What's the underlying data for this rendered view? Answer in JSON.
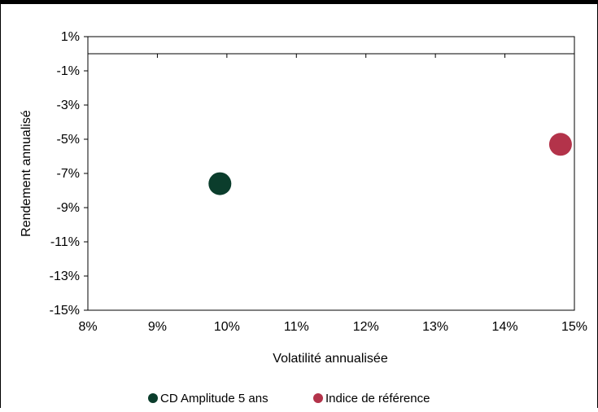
{
  "chart_data": {
    "type": "scatter",
    "xlabel": "Volatilité annualisée",
    "ylabel": "Rendement annualisé",
    "xlim": [
      0.08,
      0.15
    ],
    "ylim": [
      -0.15,
      0.01
    ],
    "x_ticks": [
      "8%",
      "9%",
      "10%",
      "11%",
      "12%",
      "13%",
      "14%",
      "15%"
    ],
    "y_ticks": [
      "1%",
      "-1%",
      "-3%",
      "-5%",
      "-7%",
      "-9%",
      "-11%",
      "-13%",
      "-15%"
    ],
    "x_tick_values": [
      0.08,
      0.09,
      0.1,
      0.11,
      0.12,
      0.13,
      0.14,
      0.15
    ],
    "y_tick_values": [
      0.01,
      -0.01,
      -0.03,
      -0.05,
      -0.07,
      -0.09,
      -0.11,
      -0.13,
      -0.15
    ],
    "grid": false,
    "legend_position": "bottom",
    "series": [
      {
        "name": "CD Amplitude 5 ans",
        "color": "#0b3d2c",
        "x": [
          0.099
        ],
        "y": [
          -0.076
        ]
      },
      {
        "name": "Indice de référence",
        "color": "#b3334a",
        "x": [
          0.148
        ],
        "y": [
          -0.053
        ]
      }
    ]
  }
}
